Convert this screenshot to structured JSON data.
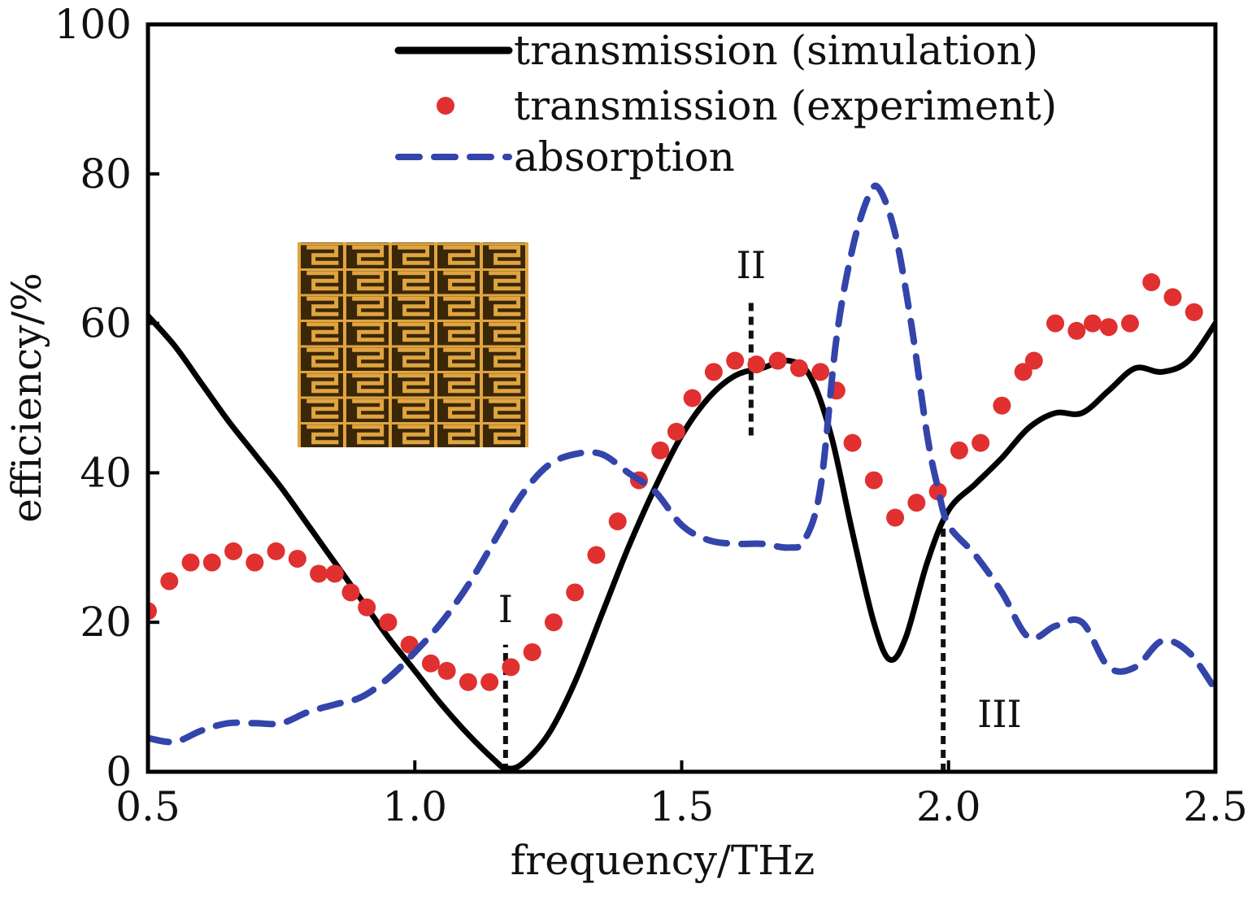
{
  "chart_data": {
    "type": "line",
    "xlabel": "frequency/THz",
    "ylabel": "efficiency/%",
    "xlim": [
      0.5,
      2.5
    ],
    "ylim": [
      0,
      100
    ],
    "x_ticks": [
      "0.5",
      "1.0",
      "1.5",
      "2.0",
      "2.5"
    ],
    "y_ticks": [
      "0",
      "20",
      "40",
      "60",
      "80",
      "100"
    ],
    "grid": false,
    "legend_position": "top-center",
    "series": [
      {
        "name": "transmission (simulation)",
        "style": "solid-line",
        "color": "#000000",
        "points": [
          [
            0.5,
            61
          ],
          [
            0.55,
            57
          ],
          [
            0.6,
            52
          ],
          [
            0.65,
            47
          ],
          [
            0.7,
            42.5
          ],
          [
            0.75,
            38
          ],
          [
            0.8,
            33
          ],
          [
            0.85,
            28
          ],
          [
            0.9,
            23
          ],
          [
            0.95,
            18
          ],
          [
            1.0,
            13.5
          ],
          [
            1.05,
            9
          ],
          [
            1.1,
            5
          ],
          [
            1.15,
            1.5
          ],
          [
            1.17,
            0.5
          ],
          [
            1.2,
            1
          ],
          [
            1.25,
            5
          ],
          [
            1.3,
            12
          ],
          [
            1.35,
            21
          ],
          [
            1.4,
            30
          ],
          [
            1.45,
            38
          ],
          [
            1.5,
            45
          ],
          [
            1.55,
            50
          ],
          [
            1.6,
            53
          ],
          [
            1.65,
            54
          ],
          [
            1.7,
            55
          ],
          [
            1.74,
            53
          ],
          [
            1.78,
            45
          ],
          [
            1.82,
            32
          ],
          [
            1.86,
            20
          ],
          [
            1.89,
            15
          ],
          [
            1.92,
            18
          ],
          [
            1.96,
            28
          ],
          [
            2.0,
            35
          ],
          [
            2.05,
            38.5
          ],
          [
            2.1,
            42
          ],
          [
            2.15,
            46
          ],
          [
            2.2,
            48
          ],
          [
            2.25,
            48
          ],
          [
            2.3,
            51
          ],
          [
            2.35,
            54
          ],
          [
            2.4,
            53.5
          ],
          [
            2.45,
            55
          ],
          [
            2.5,
            60
          ]
        ]
      },
      {
        "name": "transmission (experiment)",
        "style": "markers",
        "color": "#e03030",
        "points": [
          [
            0.5,
            21.5
          ],
          [
            0.54,
            25.5
          ],
          [
            0.58,
            28
          ],
          [
            0.62,
            28
          ],
          [
            0.66,
            29.5
          ],
          [
            0.7,
            28
          ],
          [
            0.74,
            29.5
          ],
          [
            0.78,
            28.5
          ],
          [
            0.82,
            26.5
          ],
          [
            0.85,
            26.5
          ],
          [
            0.88,
            24
          ],
          [
            0.91,
            22
          ],
          [
            0.95,
            20
          ],
          [
            0.99,
            17
          ],
          [
            1.03,
            14.5
          ],
          [
            1.06,
            13.5
          ],
          [
            1.1,
            12
          ],
          [
            1.14,
            12
          ],
          [
            1.18,
            14
          ],
          [
            1.22,
            16
          ],
          [
            1.26,
            20
          ],
          [
            1.3,
            24
          ],
          [
            1.34,
            29
          ],
          [
            1.38,
            33.5
          ],
          [
            1.42,
            39
          ],
          [
            1.46,
            43
          ],
          [
            1.49,
            45.5
          ],
          [
            1.52,
            50
          ],
          [
            1.56,
            53.5
          ],
          [
            1.6,
            55
          ],
          [
            1.64,
            54.5
          ],
          [
            1.68,
            55
          ],
          [
            1.72,
            54
          ],
          [
            1.76,
            53.5
          ],
          [
            1.79,
            51
          ],
          [
            1.82,
            44
          ],
          [
            1.86,
            39
          ],
          [
            1.9,
            34
          ],
          [
            1.94,
            36
          ],
          [
            1.98,
            37.5
          ],
          [
            2.02,
            43
          ],
          [
            2.06,
            44
          ],
          [
            2.1,
            49
          ],
          [
            2.14,
            53.5
          ],
          [
            2.16,
            55
          ],
          [
            2.2,
            60
          ],
          [
            2.24,
            59
          ],
          [
            2.27,
            60
          ],
          [
            2.3,
            59.5
          ],
          [
            2.34,
            60
          ],
          [
            2.38,
            65.5
          ],
          [
            2.42,
            63.5
          ],
          [
            2.46,
            61.5
          ]
        ]
      },
      {
        "name": "absorption",
        "style": "dashed-line",
        "color": "#3344aa",
        "points": [
          [
            0.5,
            4.5
          ],
          [
            0.55,
            4
          ],
          [
            0.6,
            5.5
          ],
          [
            0.65,
            6.5
          ],
          [
            0.7,
            6.5
          ],
          [
            0.75,
            6.5
          ],
          [
            0.8,
            8
          ],
          [
            0.85,
            9
          ],
          [
            0.9,
            10
          ],
          [
            0.95,
            12.5
          ],
          [
            1.0,
            16
          ],
          [
            1.05,
            20
          ],
          [
            1.1,
            25
          ],
          [
            1.15,
            31
          ],
          [
            1.2,
            37
          ],
          [
            1.25,
            41
          ],
          [
            1.3,
            42.5
          ],
          [
            1.35,
            42.5
          ],
          [
            1.4,
            40
          ],
          [
            1.45,
            37.5
          ],
          [
            1.5,
            33
          ],
          [
            1.55,
            31
          ],
          [
            1.6,
            30.5
          ],
          [
            1.65,
            30.5
          ],
          [
            1.7,
            30
          ],
          [
            1.73,
            31
          ],
          [
            1.76,
            38
          ],
          [
            1.79,
            58
          ],
          [
            1.82,
            70
          ],
          [
            1.85,
            77
          ],
          [
            1.87,
            78
          ],
          [
            1.9,
            72
          ],
          [
            1.93,
            60
          ],
          [
            1.96,
            45
          ],
          [
            1.98,
            38
          ],
          [
            2.0,
            33
          ],
          [
            2.05,
            29
          ],
          [
            2.1,
            24
          ],
          [
            2.15,
            18
          ],
          [
            2.2,
            19.5
          ],
          [
            2.25,
            20
          ],
          [
            2.3,
            14
          ],
          [
            2.35,
            14
          ],
          [
            2.4,
            17.5
          ],
          [
            2.45,
            16
          ],
          [
            2.5,
            11
          ]
        ]
      }
    ],
    "annotations": [
      {
        "label": "I",
        "x": 1.17,
        "y_range": [
          0,
          17
        ]
      },
      {
        "label": "II",
        "x": 1.63,
        "y_range": [
          45,
          63
        ]
      },
      {
        "label": "III",
        "x": 1.99,
        "y_range": [
          0,
          33
        ]
      }
    ]
  },
  "inset": {
    "icon": "metamaterial-microscope-image",
    "bg_color": "#3a2708",
    "pattern_color": "#e0a440"
  }
}
